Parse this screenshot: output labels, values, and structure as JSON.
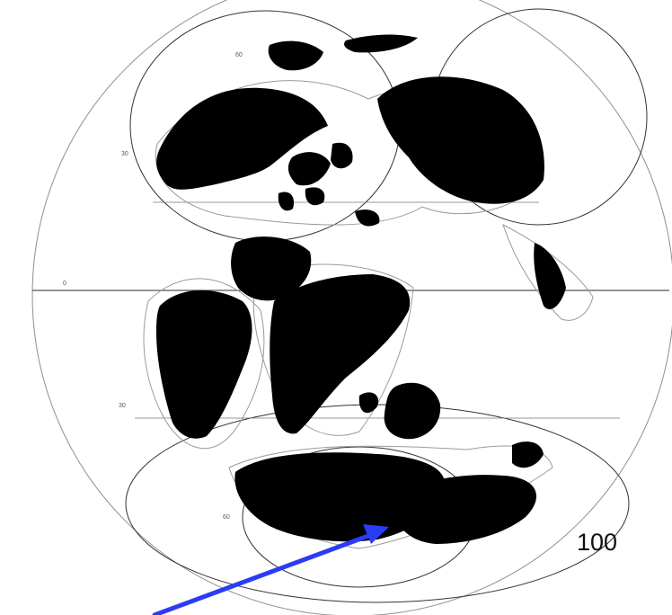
{
  "map": {
    "age_label": "100",
    "latitude_labels": {
      "north_60": "60",
      "north_30": "30",
      "equator": "0",
      "south_30": "30",
      "south_60": "60"
    }
  },
  "annotation": {
    "arrow_color": "#2b3cf5"
  }
}
